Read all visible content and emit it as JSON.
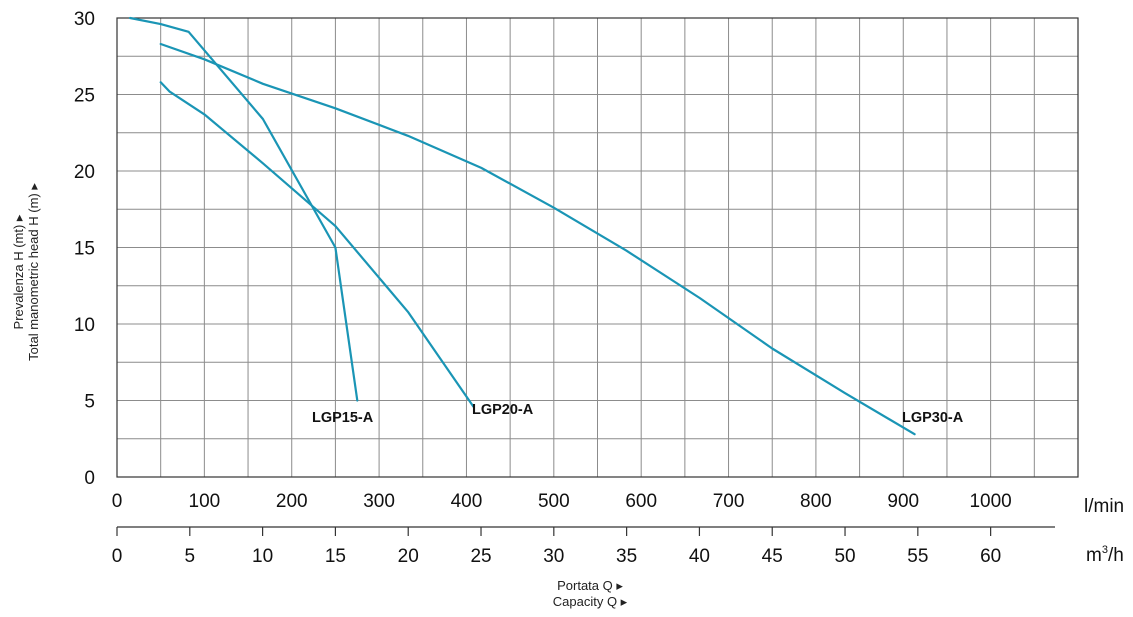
{
  "chart_data": {
    "type": "line",
    "ylabel_it": "Prevalenza H (mt) ▸",
    "ylabel_en": "Total manometric head H (m) ▸",
    "xlabel_it": "Portata Q ▸",
    "xlabel_en": "Capacity Q ▸",
    "x_unit_primary": "l/min",
    "x_unit_secondary": "m",
    "x_unit_secondary_sup": "3",
    "x_unit_secondary_tail": "/h",
    "xlim": [
      0,
      1100
    ],
    "ylim": [
      0,
      30
    ],
    "grid": true,
    "x_ticks": [
      0,
      100,
      200,
      300,
      400,
      500,
      600,
      700,
      800,
      900,
      1000
    ],
    "y_ticks": [
      0,
      5,
      10,
      15,
      20,
      25,
      30
    ],
    "x_secondary_ticks": [
      0,
      5,
      10,
      15,
      20,
      25,
      30,
      35,
      40,
      45,
      50,
      55,
      60
    ],
    "series": [
      {
        "name": "LGP15-A",
        "color": "#1a95b5",
        "x": [
          15,
          50,
          82,
          167,
          250,
          275
        ],
        "y": [
          30,
          29.6,
          29.1,
          23.4,
          15.0,
          5.0
        ]
      },
      {
        "name": "LGP20-A",
        "color": "#1a95b5",
        "x": [
          50,
          60,
          100,
          167,
          250,
          333,
          408
        ],
        "y": [
          25.8,
          25.2,
          23.7,
          20.5,
          16.4,
          10.8,
          4.6
        ]
      },
      {
        "name": "LGP30-A",
        "color": "#1a95b5",
        "x": [
          50,
          100,
          167,
          250,
          333,
          417,
          500,
          583,
          667,
          750,
          833,
          913
        ],
        "y": [
          28.3,
          27.3,
          25.7,
          24.1,
          22.3,
          20.2,
          17.6,
          14.8,
          11.7,
          8.4,
          5.5,
          2.8
        ]
      }
    ]
  }
}
